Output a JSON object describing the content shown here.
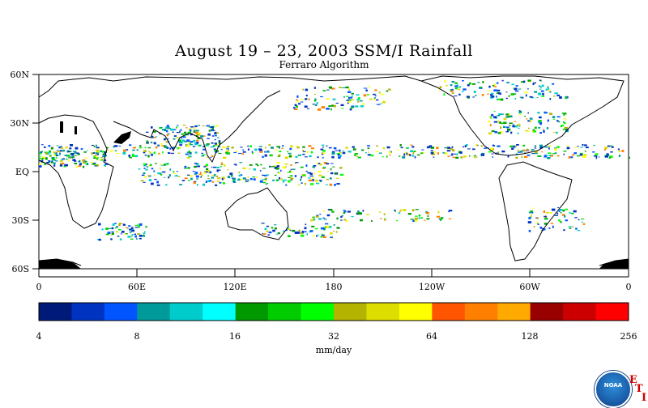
{
  "header": {
    "title": "August 19 – 23, 2003 SSM/I Rainfall",
    "subtitle": "Ferraro Algorithm"
  },
  "map": {
    "lat_labels": [
      "60N",
      "30N",
      "EQ",
      "30S",
      "60S"
    ],
    "lon_labels": [
      "0",
      "60E",
      "120E",
      "180",
      "120W",
      "60W",
      "0"
    ]
  },
  "colorbar": {
    "unit": "mm/day",
    "tick_labels": [
      "4",
      "8",
      "16",
      "32",
      "64",
      "128",
      "256"
    ],
    "colors": [
      "#001a7a",
      "#0033c0",
      "#0055ff",
      "#009a9a",
      "#00cccc",
      "#00ffff",
      "#009900",
      "#00cc00",
      "#00ff00",
      "#b3b300",
      "#dddd00",
      "#ffff00",
      "#ff5500",
      "#ff8000",
      "#ffaa00",
      "#990000",
      "#cc0000",
      "#ff0000"
    ]
  },
  "logo": {
    "text": "NOAA",
    "letters": [
      "E",
      "T",
      "I"
    ]
  }
}
